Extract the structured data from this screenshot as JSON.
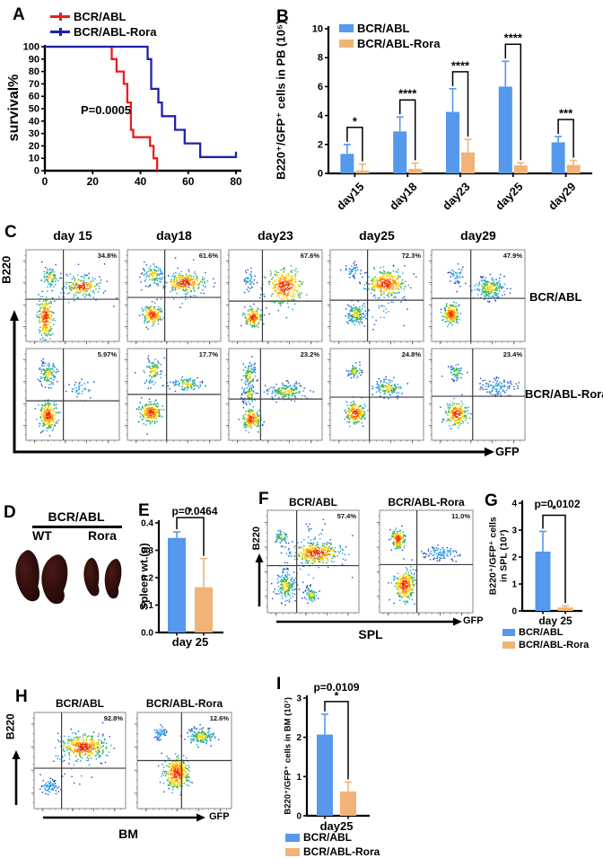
{
  "panels": {
    "A": {
      "label": "A"
    },
    "B": {
      "label": "B"
    },
    "C": {
      "label": "C"
    },
    "D": {
      "label": "D",
      "group_title": "BCR/ABL",
      "sub_labels": [
        "WT",
        "Rora"
      ]
    },
    "E": {
      "label": "E"
    },
    "F": {
      "label": "F"
    },
    "G": {
      "label": "G"
    },
    "H": {
      "label": "H"
    },
    "I": {
      "label": "I"
    }
  },
  "colors": {
    "blue": "#5598EC",
    "orange": "#F1B377",
    "red": "#EC1C1C",
    "navy": "#2022A8"
  },
  "chart_data": [
    {
      "id": "A",
      "type": "line",
      "title": "",
      "xlabel": "",
      "ylabel": "survival%",
      "p_value": "P=0.0005",
      "xlim": [
        0,
        80
      ],
      "ylim": [
        0,
        100
      ],
      "xticks": [
        0,
        20,
        40,
        60,
        80
      ],
      "yticks": [
        0,
        10,
        20,
        30,
        40,
        50,
        60,
        70,
        80,
        90,
        100
      ],
      "series": [
        {
          "name": "BCR/ABL",
          "color": "#EC1C1C",
          "steps": [
            [
              0,
              100
            ],
            [
              28,
              100
            ],
            [
              28,
              90
            ],
            [
              30,
              90
            ],
            [
              30,
              80
            ],
            [
              33,
              80
            ],
            [
              33,
              70
            ],
            [
              34.5,
              70
            ],
            [
              34.5,
              55
            ],
            [
              36,
              55
            ],
            [
              36,
              33
            ],
            [
              37,
              33
            ],
            [
              37,
              27
            ],
            [
              44,
              27
            ],
            [
              44,
              20
            ],
            [
              45.5,
              20
            ],
            [
              45.5,
              10
            ],
            [
              47,
              10
            ],
            [
              47,
              0
            ]
          ],
          "censors": []
        },
        {
          "name": "BCR/ABL-Rora",
          "color": "#2022A8",
          "steps": [
            [
              0,
              100
            ],
            [
              43,
              100
            ],
            [
              43,
              90
            ],
            [
              44.5,
              90
            ],
            [
              44.5,
              66
            ],
            [
              47.5,
              66
            ],
            [
              47.5,
              55
            ],
            [
              49,
              55
            ],
            [
              49,
              44
            ],
            [
              54.5,
              44
            ],
            [
              54.5,
              33
            ],
            [
              58.5,
              33
            ],
            [
              58.5,
              22
            ],
            [
              65,
              22
            ],
            [
              65,
              11
            ],
            [
              80,
              11
            ]
          ],
          "censors": [
            [
              80,
              11
            ]
          ]
        }
      ]
    },
    {
      "id": "B",
      "type": "bar",
      "ylabel": "B220⁺/GFP⁺ cells in PB (10⁵)",
      "categories": [
        "day15",
        "day18",
        "day23",
        "day25",
        "day29"
      ],
      "ylim": [
        0,
        10
      ],
      "yticks": [
        0,
        2,
        4,
        6,
        8,
        10
      ],
      "significance": [
        "*",
        "****",
        "****",
        "****",
        "***"
      ],
      "series": [
        {
          "name": "BCR/ABL",
          "color": "#5598EC",
          "values": [
            1.35,
            2.9,
            4.25,
            6.0,
            2.15
          ],
          "errors": [
            0.65,
            1.0,
            1.6,
            1.75,
            0.4
          ]
        },
        {
          "name": "BCR/ABL-Rora",
          "color": "#F1B377",
          "values": [
            0.2,
            0.32,
            1.45,
            0.55,
            0.58
          ],
          "errors": [
            0.45,
            0.4,
            0.9,
            0.18,
            0.32
          ]
        }
      ]
    },
    {
      "id": "E",
      "type": "bar",
      "ylabel": "Spleen wt.(g)",
      "p_value": "p=0.0464",
      "categories": [
        "day 25"
      ],
      "ylim": [
        0,
        0.4
      ],
      "yticks": [
        0,
        0.1,
        0.2,
        0.3,
        0.4
      ],
      "significance": [
        "*"
      ],
      "series": [
        {
          "name": "BCR/ABL",
          "color": "#5598EC",
          "values": [
            0.345
          ],
          "errors": [
            0.022
          ]
        },
        {
          "name": "BCR/ABL-Rora",
          "color": "#F1B377",
          "values": [
            0.165
          ],
          "errors": [
            0.105
          ]
        }
      ]
    },
    {
      "id": "G",
      "type": "bar",
      "ylabel": "B220⁺/GFP⁺ cells in SPL (10⁷)",
      "ylabel_lines": [
        "B220⁺/GFP⁺ cells",
        "in SPL (10⁷)"
      ],
      "p_value": "p=0.0102",
      "categories": [
        "day 25"
      ],
      "ylim": [
        0,
        4
      ],
      "yticks": [
        0,
        1,
        2,
        3,
        4
      ],
      "significance": [
        "*"
      ],
      "series": [
        {
          "name": "BCR/ABL",
          "color": "#5598EC",
          "values": [
            2.2
          ],
          "errors": [
            0.75
          ]
        },
        {
          "name": "BCR/ABL-Rora",
          "color": "#F1B377",
          "values": [
            0.13
          ],
          "errors": [
            0.06
          ]
        }
      ]
    },
    {
      "id": "I",
      "type": "bar",
      "ylabel": "B220⁺/GFP⁺ cells in BM (10⁷)",
      "p_value": "p=0.0109",
      "categories": [
        "day25"
      ],
      "ylim": [
        0,
        3
      ],
      "yticks": [
        0,
        1,
        2,
        3
      ],
      "significance": [
        "*"
      ],
      "series": [
        {
          "name": "BCR/ABL",
          "color": "#5598EC",
          "values": [
            2.07
          ],
          "errors": [
            0.52
          ]
        },
        {
          "name": "BCR/ABL-Rora",
          "color": "#F1B377",
          "values": [
            0.62
          ],
          "errors": [
            0.24
          ]
        }
      ]
    }
  ],
  "flow": {
    "C": {
      "col_titles": [
        "day 15",
        "day18",
        "day23",
        "day25",
        "day29"
      ],
      "row_labels": [
        "BCR/ABL",
        "BCR/ABL-Rora"
      ],
      "yaxis": "B220",
      "xaxis": "GFP",
      "rows": [
        {
          "plots": [
            {
              "pct": "34.8%",
              "vx": 0.4,
              "hy": 0.54,
              "clusters": [
                [
                  0.26,
                  0.3,
                  0.045,
                  0.06,
                  70,
                  1
                ],
                [
                  0.6,
                  0.4,
                  0.085,
                  0.045,
                  170,
                  2
                ],
                [
                  0.21,
                  0.74,
                  0.04,
                  0.11,
                  220,
                  2
                ],
                [
                  0.55,
                  0.42,
                  0.18,
                  0.12,
                  60,
                  0
                ]
              ]
            },
            {
              "pct": "61.6%",
              "vx": 0.4,
              "hy": 0.52,
              "clusters": [
                [
                  0.28,
                  0.27,
                  0.055,
                  0.055,
                  90,
                  1
                ],
                [
                  0.62,
                  0.36,
                  0.1,
                  0.05,
                  240,
                  2
                ],
                [
                  0.27,
                  0.71,
                  0.05,
                  0.05,
                  160,
                  2
                ],
                [
                  0.55,
                  0.4,
                  0.2,
                  0.14,
                  50,
                  0
                ]
              ]
            },
            {
              "pct": "67.6%",
              "vx": 0.36,
              "hy": 0.56,
              "clusters": [
                [
                  0.22,
                  0.33,
                  0.035,
                  0.045,
                  45,
                  0
                ],
                [
                  0.6,
                  0.4,
                  0.1,
                  0.1,
                  300,
                  2
                ],
                [
                  0.26,
                  0.74,
                  0.045,
                  0.05,
                  160,
                  2
                ]
              ]
            },
            {
              "pct": "72.3%",
              "vx": 0.4,
              "hy": 0.55,
              "clusters": [
                [
                  0.24,
                  0.22,
                  0.04,
                  0.04,
                  45,
                  0
                ],
                [
                  0.6,
                  0.37,
                  0.1,
                  0.07,
                  300,
                  2
                ],
                [
                  0.28,
                  0.7,
                  0.05,
                  0.06,
                  140,
                  1
                ],
                [
                  0.55,
                  0.6,
                  0.15,
                  0.12,
                  40,
                  0
                ]
              ]
            },
            {
              "pct": "47.9%",
              "vx": 0.42,
              "hy": 0.53,
              "clusters": [
                [
                  0.27,
                  0.28,
                  0.04,
                  0.05,
                  45,
                  0
                ],
                [
                  0.63,
                  0.42,
                  0.085,
                  0.065,
                  200,
                  1
                ],
                [
                  0.21,
                  0.7,
                  0.04,
                  0.055,
                  180,
                  2
                ]
              ]
            }
          ]
        },
        {
          "plots": [
            {
              "pct": "5.97%",
              "vx": 0.4,
              "hy": 0.57,
              "clusters": [
                [
                  0.24,
                  0.28,
                  0.05,
                  0.07,
                  120,
                  1
                ],
                [
                  0.6,
                  0.43,
                  0.08,
                  0.05,
                  40,
                  0
                ],
                [
                  0.24,
                  0.73,
                  0.05,
                  0.07,
                  220,
                  2
                ]
              ]
            },
            {
              "pct": "17.7%",
              "vx": 0.42,
              "hy": 0.5,
              "clusters": [
                [
                  0.28,
                  0.25,
                  0.055,
                  0.075,
                  100,
                  1
                ],
                [
                  0.64,
                  0.39,
                  0.08,
                  0.035,
                  100,
                  1
                ],
                [
                  0.25,
                  0.7,
                  0.055,
                  0.055,
                  220,
                  2
                ]
              ]
            },
            {
              "pct": "23.2%",
              "vx": 0.34,
              "hy": 0.55,
              "clusters": [
                [
                  0.22,
                  0.3,
                  0.035,
                  0.07,
                  90,
                  1
                ],
                [
                  0.22,
                  0.5,
                  0.035,
                  0.05,
                  80,
                  1
                ],
                [
                  0.62,
                  0.47,
                  0.1,
                  0.045,
                  160,
                  1
                ],
                [
                  0.24,
                  0.77,
                  0.045,
                  0.055,
                  180,
                  2
                ]
              ]
            },
            {
              "pct": "24.8%",
              "vx": 0.42,
              "hy": 0.53,
              "clusters": [
                [
                  0.26,
                  0.25,
                  0.035,
                  0.04,
                  60,
                  1
                ],
                [
                  0.62,
                  0.43,
                  0.075,
                  0.045,
                  130,
                  1
                ],
                [
                  0.27,
                  0.71,
                  0.05,
                  0.06,
                  200,
                  2
                ]
              ]
            },
            {
              "pct": "23.4%",
              "vx": 0.44,
              "hy": 0.52,
              "clusters": [
                [
                  0.26,
                  0.26,
                  0.035,
                  0.04,
                  60,
                  1
                ],
                [
                  0.7,
                  0.42,
                  0.09,
                  0.045,
                  110,
                  0
                ],
                [
                  0.27,
                  0.71,
                  0.055,
                  0.065,
                  210,
                  2
                ]
              ]
            }
          ]
        }
      ]
    },
    "F": {
      "titles": [
        "BCR/ABL",
        "BCR/ABL-Rora"
      ],
      "yaxis": "B220",
      "xaxis": "GFP",
      "organ": "SPL",
      "plots": [
        {
          "pct": "57.4%",
          "vx": 0.32,
          "hy": 0.54,
          "clusters": [
            [
              0.16,
              0.26,
              0.035,
              0.035,
              60,
              1
            ],
            [
              0.54,
              0.42,
              0.13,
              0.05,
              320,
              2
            ],
            [
              0.2,
              0.74,
              0.055,
              0.075,
              180,
              1
            ],
            [
              0.48,
              0.82,
              0.035,
              0.04,
              70,
              1
            ],
            [
              0.55,
              0.45,
              0.22,
              0.18,
              60,
              0
            ]
          ]
        },
        {
          "pct": "11.0%",
          "vx": 0.4,
          "hy": 0.53,
          "clusters": [
            [
              0.2,
              0.28,
              0.035,
              0.045,
              140,
              2
            ],
            [
              0.66,
              0.42,
              0.1,
              0.035,
              100,
              0
            ],
            [
              0.27,
              0.73,
              0.055,
              0.075,
              260,
              2
            ]
          ]
        }
      ]
    },
    "H": {
      "titles": [
        "BCR/ABL",
        "BCR/ABL-Rora"
      ],
      "yaxis": "B220",
      "xaxis": "GFP",
      "organ": "BM",
      "plots": [
        {
          "pct": "92.8%",
          "vx": 0.3,
          "hy": 0.58,
          "clusters": [
            [
              0.54,
              0.36,
              0.12,
              0.06,
              360,
              2
            ],
            [
              0.17,
              0.77,
              0.045,
              0.045,
              70,
              0
            ],
            [
              0.5,
              0.45,
              0.2,
              0.15,
              50,
              0
            ]
          ]
        },
        {
          "pct": "12.6%",
          "vx": 0.47,
          "hy": 0.5,
          "clusters": [
            [
              0.24,
              0.22,
              0.035,
              0.035,
              50,
              0
            ],
            [
              0.68,
              0.25,
              0.075,
              0.045,
              150,
              1
            ],
            [
              0.42,
              0.63,
              0.065,
              0.085,
              320,
              2
            ]
          ]
        }
      ]
    }
  }
}
